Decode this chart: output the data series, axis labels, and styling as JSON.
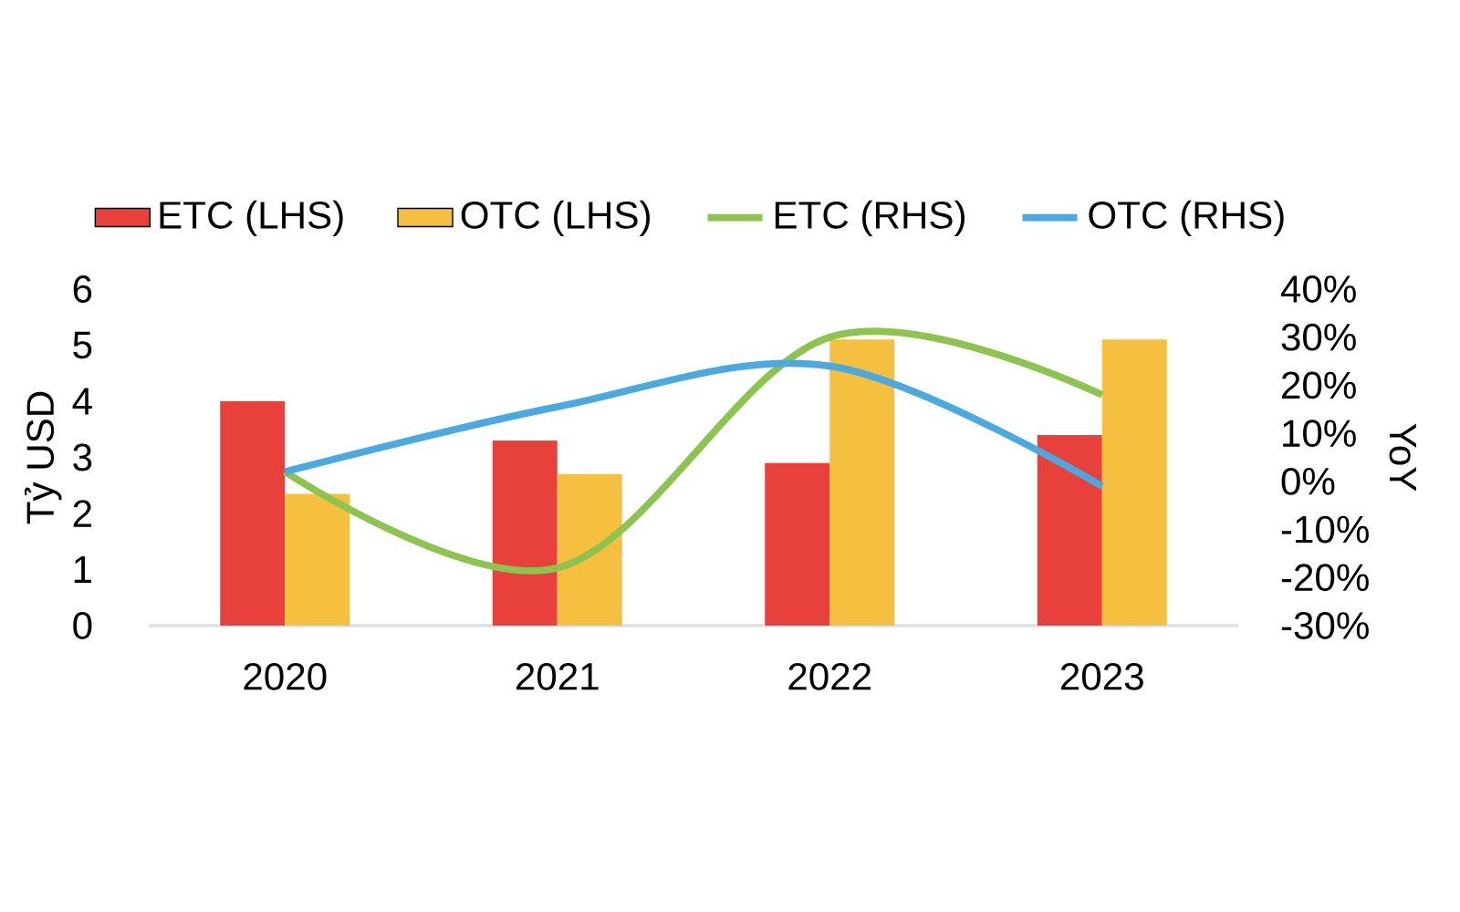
{
  "chart_data": {
    "type": "bar",
    "categories": [
      "2020",
      "2021",
      "2022",
      "2023"
    ],
    "ylabel": "Tỷ USD",
    "y2label": "YoY",
    "legend": "top",
    "grid": false,
    "ylim": [
      0,
      6
    ],
    "yticks": [
      0,
      1,
      2,
      3,
      4,
      5,
      6
    ],
    "y2lim": [
      -30,
      40
    ],
    "y2ticks": [
      {
        "value": -30,
        "label": "-30%"
      },
      {
        "value": -20,
        "label": "-20%"
      },
      {
        "value": -10,
        "label": "-10%"
      },
      {
        "value": 0,
        "label": "0%"
      },
      {
        "value": 10,
        "label": "10%"
      },
      {
        "value": 20,
        "label": "20%"
      },
      {
        "value": 30,
        "label": "30%"
      },
      {
        "value": 40,
        "label": "40%"
      }
    ],
    "series": [
      {
        "name": "ETC (LHS)",
        "color": "#e8403a",
        "values": [
          4.0,
          3.3,
          2.9,
          3.4
        ]
      },
      {
        "name": "OTC (LHS)",
        "color": "#f5bf3f",
        "values": [
          2.35,
          2.7,
          5.1,
          5.1
        ]
      },
      {
        "name": "ETC (RHS)",
        "type": "line",
        "axis": "y2",
        "color": "#8dc34f",
        "values": [
          2,
          -18,
          30,
          18
        ]
      },
      {
        "name": "OTC (RHS)",
        "type": "line",
        "axis": "y2",
        "color": "#4aa9e0",
        "values": [
          2,
          15.5,
          24,
          -1
        ]
      }
    ]
  }
}
